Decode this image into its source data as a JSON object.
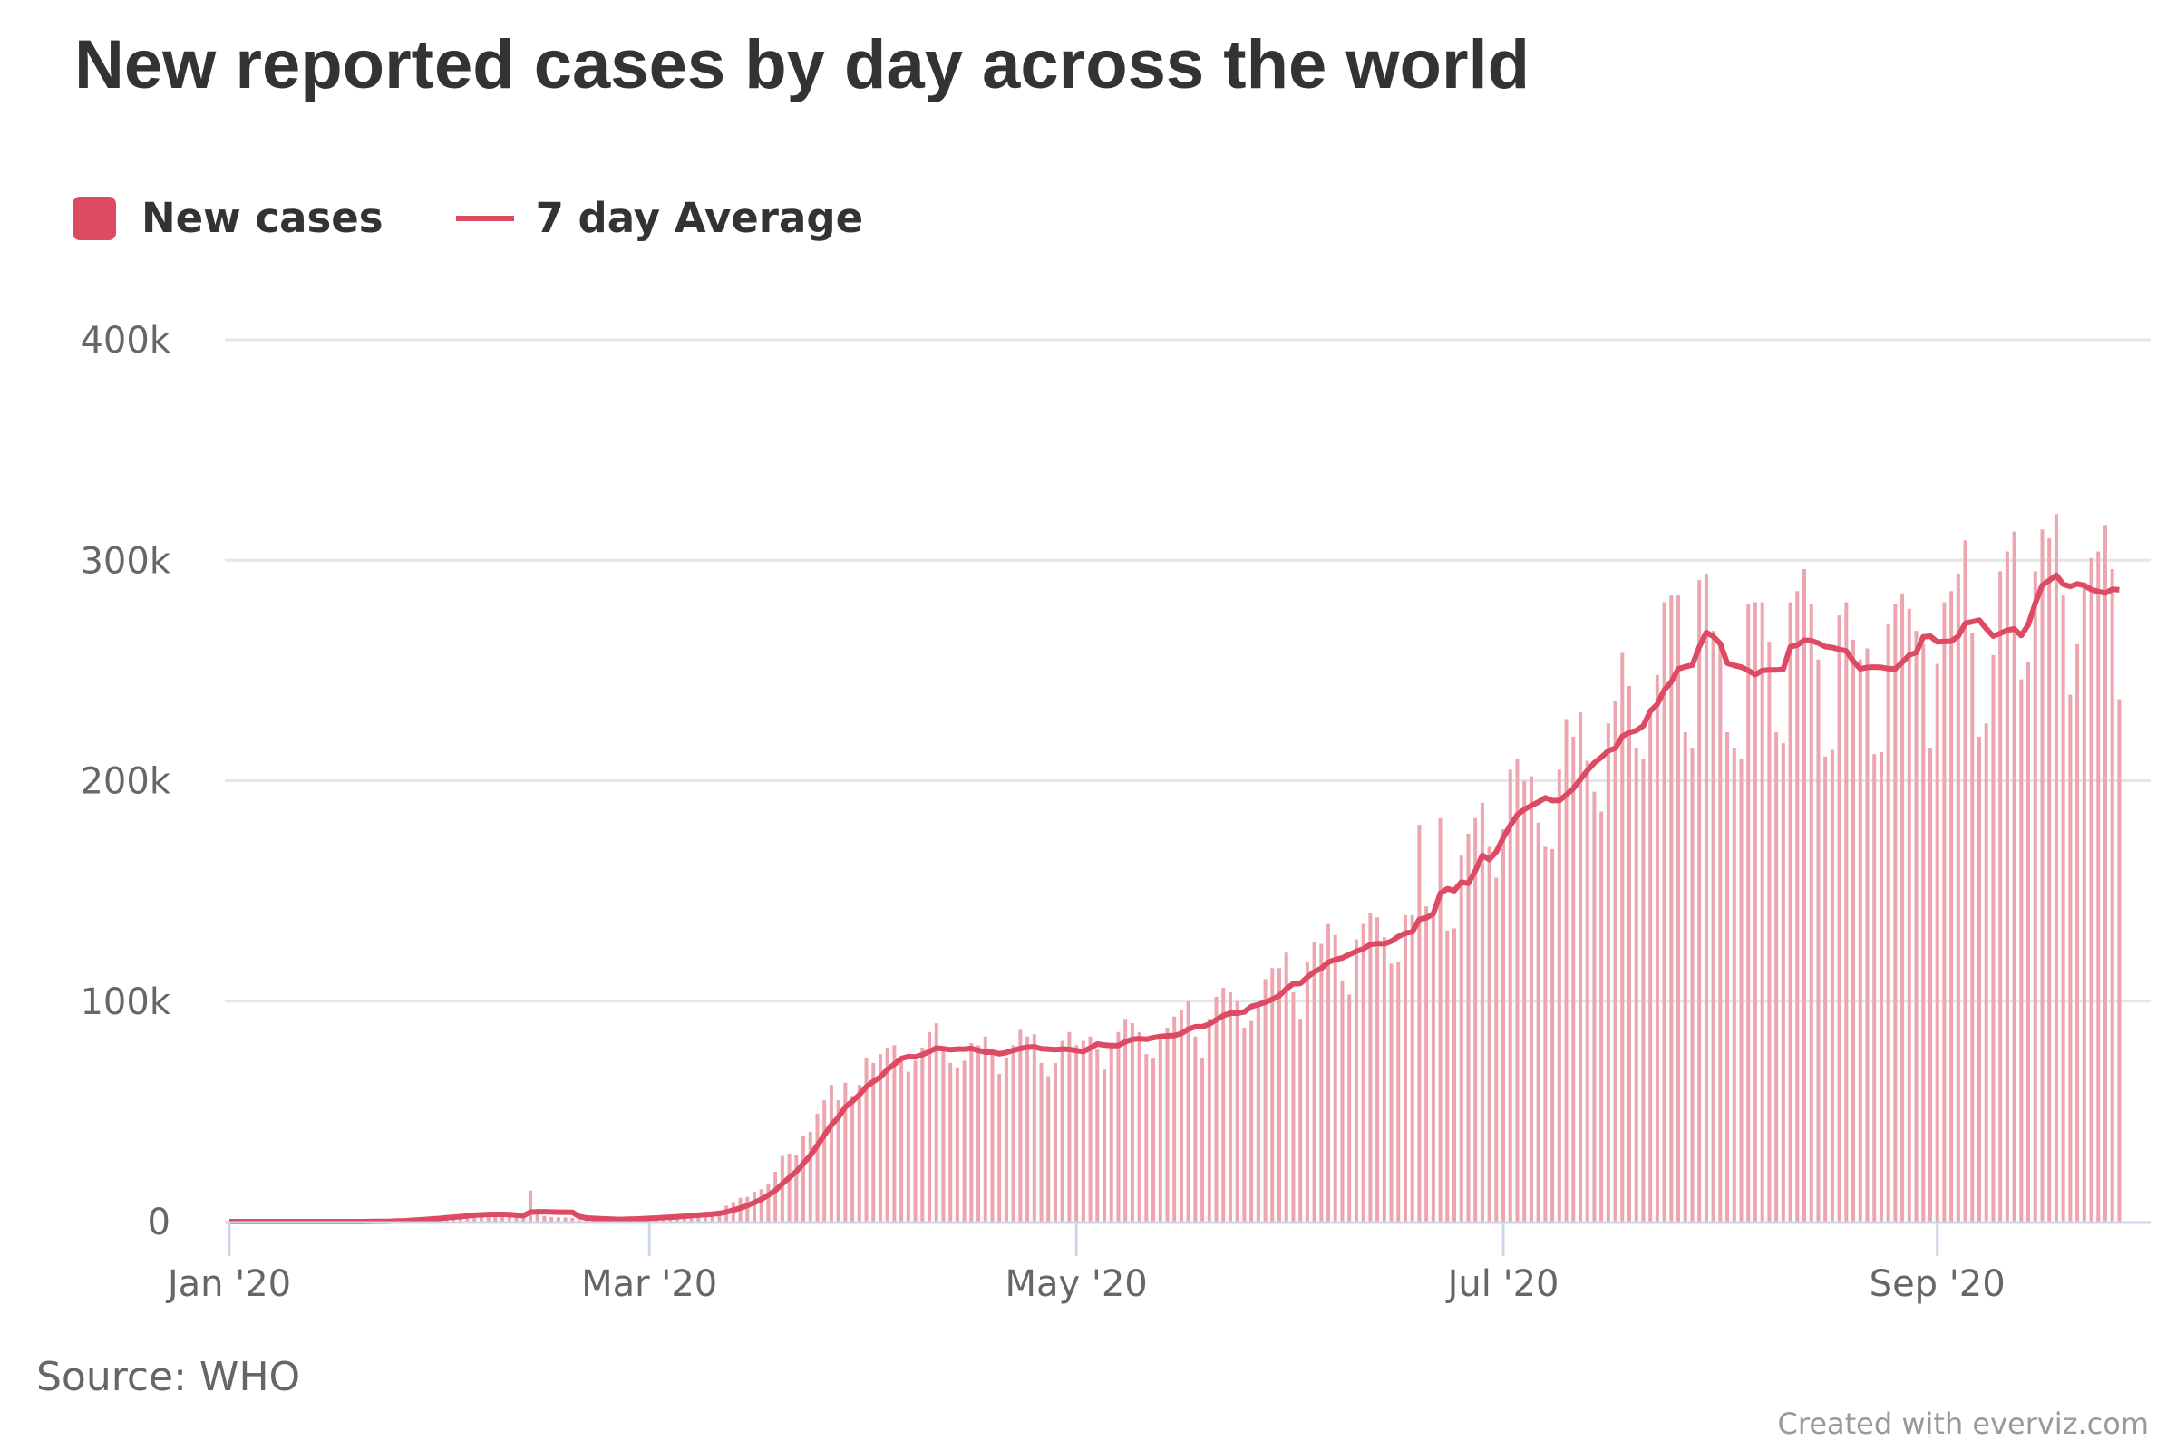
{
  "title": "New reported cases by day across the world",
  "source": "Source: WHO",
  "credit": "Created with everviz.com",
  "colors": {
    "bar": "#eda6b0",
    "line": "#dc4a63",
    "legend_box": "#dc4a63",
    "grid": "#e6e6e6",
    "axis": "#ccd6eb"
  },
  "legend": [
    {
      "label": "New cases",
      "icon": "square-swatch"
    },
    {
      "label": "7 day Average",
      "icon": "line-swatch"
    }
  ],
  "chart_data": {
    "type": "bar",
    "title": "New reported cases by day across the world",
    "x_start": "2020-01-01",
    "x_end": "2020-09-27",
    "x_ticks": [
      {
        "date": "2020-01-01",
        "label": "Jan '20"
      },
      {
        "date": "2020-03-01",
        "label": "Mar '20"
      },
      {
        "date": "2020-05-01",
        "label": "May '20"
      },
      {
        "date": "2020-07-01",
        "label": "Jul '20"
      },
      {
        "date": "2020-09-01",
        "label": "Sep '20"
      }
    ],
    "y_ticks": [
      {
        "value": 0,
        "label": "0"
      },
      {
        "value": 100000,
        "label": "100k"
      },
      {
        "value": 200000,
        "label": "200k"
      },
      {
        "value": 300000,
        "label": "300k"
      },
      {
        "value": 400000,
        "label": "400k"
      }
    ],
    "ylim": [
      0,
      400000
    ],
    "grid": true,
    "legend_position": "top-left",
    "series": [
      {
        "name": "New cases",
        "type": "bar",
        "values": [
          0,
          0,
          0,
          0,
          0,
          0,
          0,
          0,
          0,
          0,
          0,
          0,
          0,
          0,
          0,
          0,
          0,
          0,
          0,
          100,
          150,
          200,
          300,
          450,
          700,
          800,
          1400,
          1700,
          1500,
          2000,
          2100,
          2600,
          2800,
          3200,
          3900,
          3700,
          3200,
          3400,
          2700,
          3000,
          2500,
          2000,
          2100,
          14100,
          5100,
          2600,
          2100,
          2000,
          1900,
          1700,
          600,
          1000,
          1100,
          1000,
          1100,
          900,
          1200,
          1400,
          1700,
          1900,
          2100,
          2300,
          2300,
          2500,
          2800,
          3200,
          3800,
          3600,
          3900,
          4200,
          4600,
          7200,
          8900,
          10800,
          11200,
          13600,
          14700,
          17200,
          22600,
          29800,
          30800,
          30100,
          39000,
          40800,
          49000,
          55000,
          62000,
          55000,
          63000,
          57000,
          62000,
          74000,
          72000,
          76000,
          79000,
          80000,
          75000,
          68000,
          73000,
          79000,
          86000,
          90000,
          78000,
          72000,
          70000,
          73000,
          81000,
          80000,
          84000,
          78000,
          67000,
          74000,
          80000,
          87000,
          84000,
          85000,
          72000,
          66000,
          72000,
          82000,
          86000,
          80000,
          82000,
          84000,
          78000,
          69000,
          80000,
          86000,
          92000,
          90000,
          86000,
          76000,
          74000,
          84000,
          88000,
          93000,
          96000,
          100000,
          84000,
          74000,
          92000,
          102000,
          106000,
          104000,
          100000,
          88000,
          91000,
          98000,
          110000,
          115000,
          115000,
          122000,
          104000,
          92000,
          118000,
          127000,
          126000,
          135000,
          130000,
          109000,
          103000,
          128000,
          135000,
          140000,
          138000,
          129000,
          117000,
          118000,
          139000,
          139000,
          180000,
          143000,
          141000,
          183000,
          132000,
          133000,
          166000,
          176000,
          183000,
          190000,
          170000,
          156000,
          178000,
          205000,
          210000,
          200000,
          202000,
          181000,
          170000,
          169000,
          205000,
          228000,
          220000,
          231000,
          209000,
          195000,
          186000,
          226000,
          236000,
          258000,
          243000,
          215000,
          210000,
          233000,
          248000,
          281000,
          284000,
          284000,
          222000,
          215000,
          291000,
          294000,
          268000,
          261000,
          222000,
          215000,
          210000,
          280000,
          281000,
          281000,
          263000,
          222000,
          217000,
          281000,
          286000,
          296000,
          280000,
          255000,
          211000,
          214000,
          275000,
          281000,
          264000,
          255000,
          260000,
          212000,
          213000,
          271000,
          280000,
          285000,
          278000,
          268000,
          262000,
          215000,
          253000,
          281000,
          286000,
          294000,
          309000,
          267000,
          220000,
          226000,
          257000,
          295000,
          304000,
          313000,
          246000,
          254000,
          295000,
          314000,
          310000,
          321000,
          284000,
          239000,
          262000,
          290000,
          301000,
          304000,
          316000,
          296000,
          237000
        ]
      },
      {
        "name": "7 day Average",
        "type": "line",
        "rolling_window_days": 7
      }
    ]
  }
}
